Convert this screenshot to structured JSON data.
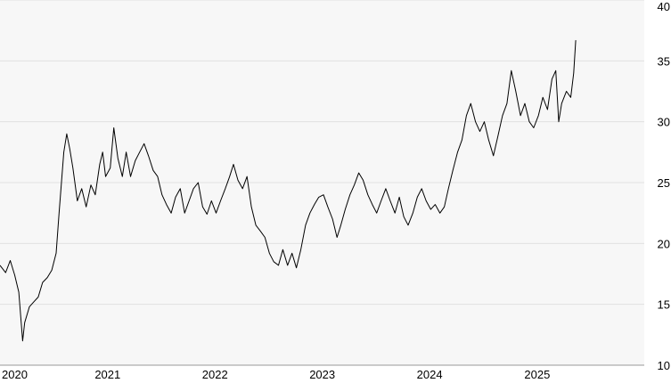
{
  "chart_data": {
    "type": "line",
    "title": "",
    "xlabel": "",
    "ylabel": "",
    "y_axis_side": "right",
    "grid": "horizontal",
    "ylim": [
      10,
      40
    ],
    "yticks": [
      10,
      15,
      20,
      25,
      30,
      35,
      40
    ],
    "xlim": [
      "2020-01-01",
      "2025-12-31"
    ],
    "xticks": [
      {
        "date": "2020-01-01",
        "label": "2020"
      },
      {
        "date": "2021-01-01",
        "label": "2021"
      },
      {
        "date": "2022-01-01",
        "label": "2022"
      },
      {
        "date": "2023-01-01",
        "label": "2023"
      },
      {
        "date": "2024-01-01",
        "label": "2024"
      },
      {
        "date": "2025-01-01",
        "label": "2025"
      }
    ],
    "colors": {
      "line": "#000000",
      "plot_background": "#f7f7f7",
      "grid": "#e2e2e2"
    },
    "series": [
      {
        "points": [
          [
            "2020-01-01",
            18.2
          ],
          [
            "2020-01-20",
            17.6
          ],
          [
            "2020-02-05",
            18.6
          ],
          [
            "2020-02-20",
            17.4
          ],
          [
            "2020-03-05",
            16.0
          ],
          [
            "2020-03-18",
            12.0
          ],
          [
            "2020-03-25",
            13.5
          ],
          [
            "2020-04-10",
            14.8
          ],
          [
            "2020-04-25",
            15.2
          ],
          [
            "2020-05-10",
            15.6
          ],
          [
            "2020-05-25",
            16.8
          ],
          [
            "2020-06-10",
            17.2
          ],
          [
            "2020-06-25",
            17.8
          ],
          [
            "2020-07-10",
            19.2
          ],
          [
            "2020-07-20",
            22.5
          ],
          [
            "2020-08-05",
            27.5
          ],
          [
            "2020-08-15",
            29.0
          ],
          [
            "2020-08-25",
            27.8
          ],
          [
            "2020-09-05",
            26.2
          ],
          [
            "2020-09-20",
            23.5
          ],
          [
            "2020-10-05",
            24.5
          ],
          [
            "2020-10-20",
            23.0
          ],
          [
            "2020-11-05",
            24.8
          ],
          [
            "2020-11-20",
            24.0
          ],
          [
            "2020-12-05",
            26.5
          ],
          [
            "2020-12-15",
            27.5
          ],
          [
            "2020-12-25",
            25.5
          ],
          [
            "2021-01-10",
            26.2
          ],
          [
            "2021-01-22",
            29.5
          ],
          [
            "2021-02-05",
            27.0
          ],
          [
            "2021-02-20",
            25.5
          ],
          [
            "2021-03-05",
            27.5
          ],
          [
            "2021-03-20",
            25.5
          ],
          [
            "2021-04-05",
            26.8
          ],
          [
            "2021-04-20",
            27.5
          ],
          [
            "2021-05-05",
            28.2
          ],
          [
            "2021-05-20",
            27.2
          ],
          [
            "2021-06-05",
            26.0
          ],
          [
            "2021-06-20",
            25.5
          ],
          [
            "2021-07-05",
            24.0
          ],
          [
            "2021-07-20",
            23.2
          ],
          [
            "2021-08-05",
            22.5
          ],
          [
            "2021-08-20",
            23.8
          ],
          [
            "2021-09-05",
            24.5
          ],
          [
            "2021-09-20",
            22.5
          ],
          [
            "2021-10-05",
            23.5
          ],
          [
            "2021-10-20",
            24.5
          ],
          [
            "2021-11-05",
            25.0
          ],
          [
            "2021-11-20",
            23.0
          ],
          [
            "2021-12-05",
            22.4
          ],
          [
            "2021-12-20",
            23.5
          ],
          [
            "2022-01-05",
            22.5
          ],
          [
            "2022-01-20",
            23.5
          ],
          [
            "2022-02-05",
            24.5
          ],
          [
            "2022-02-20",
            25.5
          ],
          [
            "2022-03-05",
            26.5
          ],
          [
            "2022-03-20",
            25.2
          ],
          [
            "2022-04-05",
            24.5
          ],
          [
            "2022-04-20",
            25.5
          ],
          [
            "2022-05-05",
            23.0
          ],
          [
            "2022-05-20",
            21.5
          ],
          [
            "2022-06-05",
            21.0
          ],
          [
            "2022-06-20",
            20.5
          ],
          [
            "2022-07-05",
            19.2
          ],
          [
            "2022-07-20",
            18.5
          ],
          [
            "2022-08-05",
            18.2
          ],
          [
            "2022-08-20",
            19.5
          ],
          [
            "2022-09-05",
            18.2
          ],
          [
            "2022-09-20",
            19.2
          ],
          [
            "2022-10-05",
            18.0
          ],
          [
            "2022-10-20",
            19.5
          ],
          [
            "2022-11-05",
            21.5
          ],
          [
            "2022-11-20",
            22.5
          ],
          [
            "2022-12-05",
            23.2
          ],
          [
            "2022-12-20",
            23.8
          ],
          [
            "2023-01-05",
            24.0
          ],
          [
            "2023-01-20",
            23.0
          ],
          [
            "2023-02-05",
            22.0
          ],
          [
            "2023-02-20",
            20.5
          ],
          [
            "2023-03-05",
            21.5
          ],
          [
            "2023-03-20",
            22.8
          ],
          [
            "2023-04-05",
            24.0
          ],
          [
            "2023-04-20",
            24.8
          ],
          [
            "2023-05-05",
            25.8
          ],
          [
            "2023-05-20",
            25.2
          ],
          [
            "2023-06-05",
            24.0
          ],
          [
            "2023-06-20",
            23.2
          ],
          [
            "2023-07-05",
            22.5
          ],
          [
            "2023-07-20",
            23.5
          ],
          [
            "2023-08-05",
            24.5
          ],
          [
            "2023-08-20",
            23.5
          ],
          [
            "2023-09-05",
            22.5
          ],
          [
            "2023-09-20",
            23.8
          ],
          [
            "2023-10-05",
            22.2
          ],
          [
            "2023-10-20",
            21.5
          ],
          [
            "2023-11-05",
            22.5
          ],
          [
            "2023-11-20",
            23.8
          ],
          [
            "2023-12-05",
            24.5
          ],
          [
            "2023-12-20",
            23.5
          ],
          [
            "2024-01-05",
            22.8
          ],
          [
            "2024-01-20",
            23.2
          ],
          [
            "2024-02-05",
            22.5
          ],
          [
            "2024-02-20",
            23.0
          ],
          [
            "2024-03-05",
            24.5
          ],
          [
            "2024-03-20",
            26.0
          ],
          [
            "2024-04-05",
            27.5
          ],
          [
            "2024-04-20",
            28.5
          ],
          [
            "2024-05-05",
            30.5
          ],
          [
            "2024-05-20",
            31.5
          ],
          [
            "2024-06-05",
            30.0
          ],
          [
            "2024-06-20",
            29.2
          ],
          [
            "2024-07-05",
            30.0
          ],
          [
            "2024-07-20",
            28.5
          ],
          [
            "2024-08-05",
            27.2
          ],
          [
            "2024-08-20",
            28.8
          ],
          [
            "2024-09-05",
            30.5
          ],
          [
            "2024-09-20",
            31.5
          ],
          [
            "2024-10-05",
            34.2
          ],
          [
            "2024-10-20",
            32.5
          ],
          [
            "2024-11-05",
            30.5
          ],
          [
            "2024-11-20",
            31.5
          ],
          [
            "2024-12-05",
            30.0
          ],
          [
            "2024-12-20",
            29.5
          ],
          [
            "2025-01-05",
            30.5
          ],
          [
            "2025-01-20",
            32.0
          ],
          [
            "2025-02-05",
            31.0
          ],
          [
            "2025-02-20",
            33.5
          ],
          [
            "2025-03-05",
            34.2
          ],
          [
            "2025-03-15",
            30.0
          ],
          [
            "2025-03-25",
            31.5
          ],
          [
            "2025-04-10",
            32.5
          ],
          [
            "2025-04-25",
            32.0
          ],
          [
            "2025-05-05",
            34.0
          ],
          [
            "2025-05-12",
            36.7
          ]
        ]
      }
    ]
  }
}
